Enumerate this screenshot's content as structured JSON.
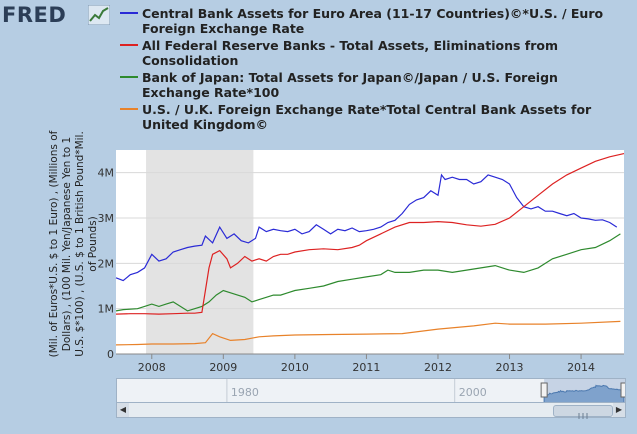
{
  "logo": {
    "text": "FRED",
    "icon": "line-chart-icon"
  },
  "chart_data": {
    "type": "line",
    "ylabel": "(Mil. of Euros*U.S. $ to 1 Euro) , (Millions of Dollars) , (100 Mil. Yen/Japanese Yen to 1 U.S. $*100) , (U.S. $ to 1 British Pound*Mil. of Pounds)",
    "xlim": [
      2007.5,
      2014.6
    ],
    "ylim": [
      0,
      4.5
    ],
    "x_ticks": [
      "2008",
      "2009",
      "2010",
      "2011",
      "2012",
      "2013",
      "2014"
    ],
    "x_tick_values": [
      2008,
      2009,
      2010,
      2011,
      2012,
      2013,
      2014
    ],
    "y_ticks": [
      "0",
      "1M",
      "2M",
      "3M",
      "4M"
    ],
    "y_tick_values": [
      0,
      1,
      2,
      3,
      4
    ],
    "recession": [
      2007.92,
      2009.42
    ],
    "series": [
      {
        "name": "Central Bank Assets for Euro Area (11-17 Countries)©*U.S. / Euro Foreign Exchange Rate",
        "color": "#2a2ad6",
        "points": [
          [
            2007.5,
            1.68
          ],
          [
            2007.6,
            1.62
          ],
          [
            2007.7,
            1.75
          ],
          [
            2007.8,
            1.8
          ],
          [
            2007.9,
            1.9
          ],
          [
            2008.0,
            2.2
          ],
          [
            2008.1,
            2.05
          ],
          [
            2008.2,
            2.1
          ],
          [
            2008.3,
            2.25
          ],
          [
            2008.4,
            2.3
          ],
          [
            2008.5,
            2.35
          ],
          [
            2008.6,
            2.38
          ],
          [
            2008.7,
            2.4
          ],
          [
            2008.75,
            2.6
          ],
          [
            2008.85,
            2.45
          ],
          [
            2008.95,
            2.8
          ],
          [
            2009.05,
            2.55
          ],
          [
            2009.15,
            2.65
          ],
          [
            2009.25,
            2.5
          ],
          [
            2009.35,
            2.45
          ],
          [
            2009.45,
            2.55
          ],
          [
            2009.5,
            2.8
          ],
          [
            2009.6,
            2.7
          ],
          [
            2009.7,
            2.75
          ],
          [
            2009.8,
            2.72
          ],
          [
            2009.9,
            2.7
          ],
          [
            2010.0,
            2.75
          ],
          [
            2010.1,
            2.65
          ],
          [
            2010.2,
            2.7
          ],
          [
            2010.3,
            2.85
          ],
          [
            2010.4,
            2.75
          ],
          [
            2010.5,
            2.65
          ],
          [
            2010.6,
            2.75
          ],
          [
            2010.7,
            2.72
          ],
          [
            2010.8,
            2.78
          ],
          [
            2010.9,
            2.7
          ],
          [
            2011.0,
            2.72
          ],
          [
            2011.1,
            2.75
          ],
          [
            2011.2,
            2.8
          ],
          [
            2011.3,
            2.9
          ],
          [
            2011.4,
            2.95
          ],
          [
            2011.5,
            3.1
          ],
          [
            2011.6,
            3.3
          ],
          [
            2011.7,
            3.4
          ],
          [
            2011.8,
            3.45
          ],
          [
            2011.9,
            3.6
          ],
          [
            2012.0,
            3.5
          ],
          [
            2012.05,
            3.95
          ],
          [
            2012.1,
            3.85
          ],
          [
            2012.2,
            3.9
          ],
          [
            2012.3,
            3.85
          ],
          [
            2012.4,
            3.85
          ],
          [
            2012.5,
            3.75
          ],
          [
            2012.6,
            3.8
          ],
          [
            2012.7,
            3.95
          ],
          [
            2012.8,
            3.9
          ],
          [
            2012.9,
            3.85
          ],
          [
            2013.0,
            3.75
          ],
          [
            2013.1,
            3.45
          ],
          [
            2013.2,
            3.25
          ],
          [
            2013.3,
            3.2
          ],
          [
            2013.4,
            3.25
          ],
          [
            2013.5,
            3.15
          ],
          [
            2013.6,
            3.15
          ],
          [
            2013.7,
            3.1
          ],
          [
            2013.8,
            3.05
          ],
          [
            2013.9,
            3.1
          ],
          [
            2014.0,
            3.0
          ],
          [
            2014.1,
            2.98
          ],
          [
            2014.2,
            2.95
          ],
          [
            2014.3,
            2.96
          ],
          [
            2014.4,
            2.9
          ],
          [
            2014.5,
            2.8
          ]
        ]
      },
      {
        "name": "All Federal Reserve Banks - Total Assets, Eliminations from Consolidation",
        "color": "#dd2222",
        "points": [
          [
            2007.5,
            0.88
          ],
          [
            2007.7,
            0.89
          ],
          [
            2007.9,
            0.89
          ],
          [
            2008.1,
            0.88
          ],
          [
            2008.3,
            0.89
          ],
          [
            2008.5,
            0.9
          ],
          [
            2008.6,
            0.9
          ],
          [
            2008.7,
            0.92
          ],
          [
            2008.75,
            1.4
          ],
          [
            2008.8,
            1.9
          ],
          [
            2008.85,
            2.2
          ],
          [
            2008.95,
            2.28
          ],
          [
            2009.05,
            2.1
          ],
          [
            2009.1,
            1.9
          ],
          [
            2009.2,
            2.0
          ],
          [
            2009.3,
            2.15
          ],
          [
            2009.4,
            2.05
          ],
          [
            2009.5,
            2.1
          ],
          [
            2009.6,
            2.05
          ],
          [
            2009.7,
            2.15
          ],
          [
            2009.8,
            2.2
          ],
          [
            2009.9,
            2.2
          ],
          [
            2010.0,
            2.25
          ],
          [
            2010.2,
            2.3
          ],
          [
            2010.4,
            2.32
          ],
          [
            2010.6,
            2.3
          ],
          [
            2010.8,
            2.35
          ],
          [
            2010.9,
            2.4
          ],
          [
            2011.0,
            2.5
          ],
          [
            2011.2,
            2.65
          ],
          [
            2011.4,
            2.8
          ],
          [
            2011.6,
            2.9
          ],
          [
            2011.8,
            2.9
          ],
          [
            2012.0,
            2.92
          ],
          [
            2012.2,
            2.9
          ],
          [
            2012.4,
            2.85
          ],
          [
            2012.6,
            2.82
          ],
          [
            2012.8,
            2.86
          ],
          [
            2013.0,
            3.0
          ],
          [
            2013.2,
            3.25
          ],
          [
            2013.4,
            3.5
          ],
          [
            2013.6,
            3.75
          ],
          [
            2013.8,
            3.95
          ],
          [
            2014.0,
            4.1
          ],
          [
            2014.2,
            4.25
          ],
          [
            2014.4,
            4.35
          ],
          [
            2014.6,
            4.42
          ]
        ]
      },
      {
        "name": "Bank of Japan: Total Assets for Japan©/Japan / U.S. Foreign Exchange Rate*100",
        "color": "#2e8a2e",
        "points": [
          [
            2007.5,
            0.95
          ],
          [
            2007.6,
            0.98
          ],
          [
            2007.8,
            1.0
          ],
          [
            2007.9,
            1.05
          ],
          [
            2008.0,
            1.1
          ],
          [
            2008.1,
            1.05
          ],
          [
            2008.2,
            1.1
          ],
          [
            2008.3,
            1.15
          ],
          [
            2008.4,
            1.05
          ],
          [
            2008.5,
            0.95
          ],
          [
            2008.6,
            1.0
          ],
          [
            2008.7,
            1.05
          ],
          [
            2008.8,
            1.15
          ],
          [
            2008.9,
            1.3
          ],
          [
            2009.0,
            1.4
          ],
          [
            2009.1,
            1.35
          ],
          [
            2009.2,
            1.3
          ],
          [
            2009.3,
            1.25
          ],
          [
            2009.4,
            1.15
          ],
          [
            2009.5,
            1.2
          ],
          [
            2009.6,
            1.25
          ],
          [
            2009.7,
            1.3
          ],
          [
            2009.8,
            1.3
          ],
          [
            2009.9,
            1.35
          ],
          [
            2010.0,
            1.4
          ],
          [
            2010.2,
            1.45
          ],
          [
            2010.4,
            1.5
          ],
          [
            2010.6,
            1.6
          ],
          [
            2010.8,
            1.65
          ],
          [
            2011.0,
            1.7
          ],
          [
            2011.2,
            1.75
          ],
          [
            2011.3,
            1.85
          ],
          [
            2011.4,
            1.8
          ],
          [
            2011.6,
            1.8
          ],
          [
            2011.8,
            1.85
          ],
          [
            2012.0,
            1.85
          ],
          [
            2012.2,
            1.8
          ],
          [
            2012.4,
            1.85
          ],
          [
            2012.6,
            1.9
          ],
          [
            2012.8,
            1.95
          ],
          [
            2013.0,
            1.85
          ],
          [
            2013.2,
            1.8
          ],
          [
            2013.4,
            1.9
          ],
          [
            2013.6,
            2.1
          ],
          [
            2013.8,
            2.2
          ],
          [
            2014.0,
            2.3
          ],
          [
            2014.2,
            2.35
          ],
          [
            2014.4,
            2.5
          ],
          [
            2014.55,
            2.65
          ]
        ]
      },
      {
        "name": "U.S. / U.K. Foreign Exchange Rate*Total Central Bank Assets for United Kingdom©",
        "color": "#e8822a",
        "points": [
          [
            2007.5,
            0.2
          ],
          [
            2007.8,
            0.21
          ],
          [
            2008.0,
            0.22
          ],
          [
            2008.3,
            0.22
          ],
          [
            2008.6,
            0.23
          ],
          [
            2008.75,
            0.25
          ],
          [
            2008.85,
            0.45
          ],
          [
            2008.95,
            0.38
          ],
          [
            2009.1,
            0.3
          ],
          [
            2009.3,
            0.32
          ],
          [
            2009.5,
            0.38
          ],
          [
            2009.7,
            0.4
          ],
          [
            2010.0,
            0.42
          ],
          [
            2010.5,
            0.43
          ],
          [
            2011.0,
            0.44
          ],
          [
            2011.5,
            0.45
          ],
          [
            2012.0,
            0.55
          ],
          [
            2012.5,
            0.62
          ],
          [
            2012.8,
            0.68
          ],
          [
            2013.0,
            0.66
          ],
          [
            2013.5,
            0.66
          ],
          [
            2014.0,
            0.68
          ],
          [
            2014.55,
            0.72
          ]
        ]
      }
    ]
  },
  "navigator": {
    "labels": [
      "1980",
      "2000"
    ],
    "label_values": [
      1980,
      2000
    ],
    "range": [
      1970,
      2014.6
    ],
    "window": [
      2007.5,
      2014.6
    ]
  },
  "scrollbar": {
    "left_arrow": "◀",
    "right_arrow": "▶",
    "thumb_icon": "grip-icon"
  }
}
